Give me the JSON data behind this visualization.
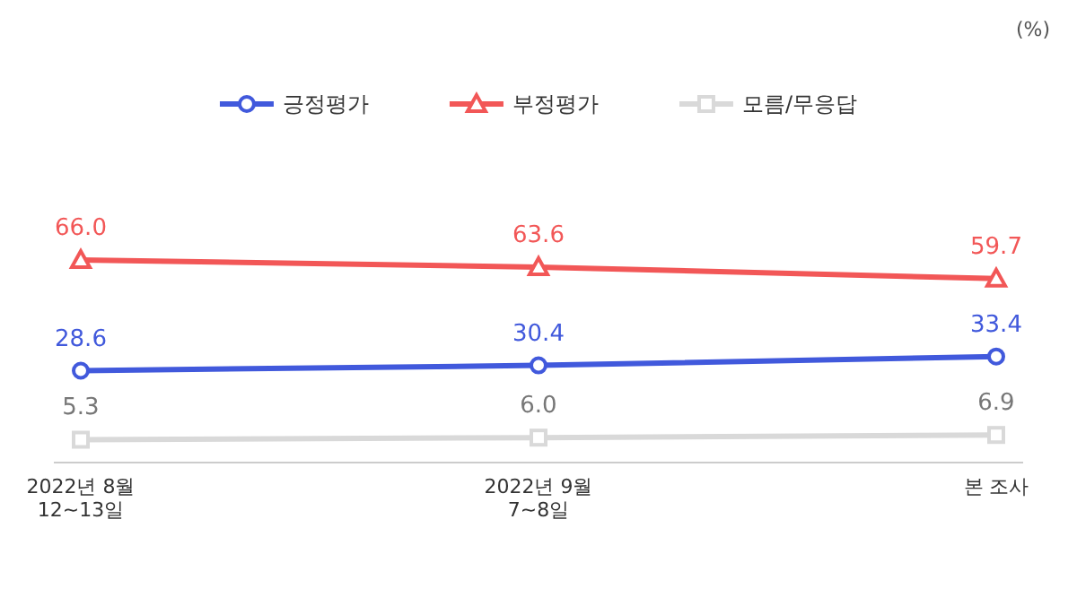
{
  "chart_data": {
    "type": "line",
    "categories": [
      "2022년 8월\n12~13일",
      "2022년 9월\n7~8일",
      "본 조사"
    ],
    "series": [
      {
        "name": "긍정평가",
        "color": "#4159dc",
        "values": [
          28.6,
          30.4,
          33.4
        ],
        "value_labels": [
          "28.6",
          "30.4",
          "33.4"
        ],
        "marker": "circle"
      },
      {
        "name": "부정평가",
        "color": "#f25757",
        "values": [
          66.0,
          63.6,
          59.7
        ],
        "value_labels": [
          "66.0",
          "63.6",
          "59.7"
        ],
        "marker": "triangle"
      },
      {
        "name": "모름/무응답",
        "color": "#d9d9d9",
        "values": [
          5.3,
          6.0,
          6.9
        ],
        "value_labels": [
          "5.3",
          "6.0",
          "6.9"
        ],
        "marker": "square"
      }
    ],
    "legend": "top",
    "grid": false,
    "line_style": "solid",
    "annotations": [
      "(%)"
    ]
  }
}
